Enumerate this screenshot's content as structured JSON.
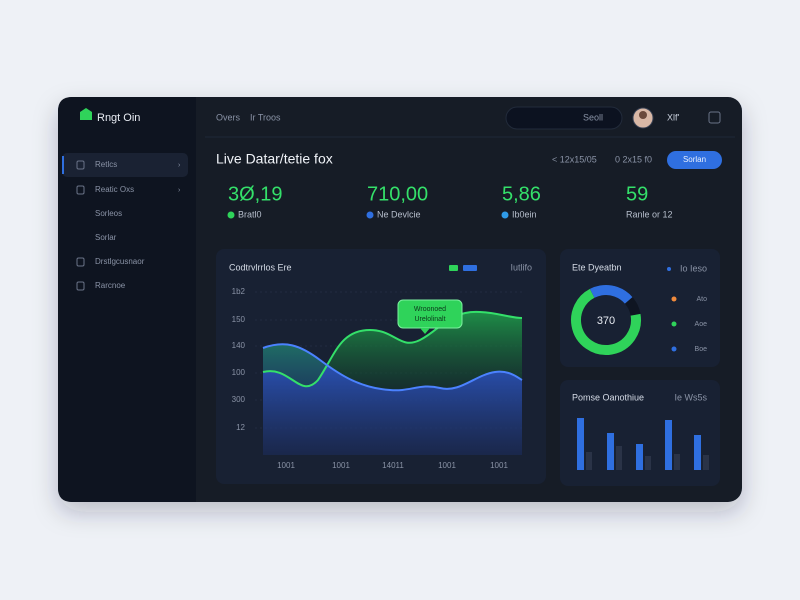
{
  "sidebar": {
    "brand": "Rngt Oin",
    "items": [
      "Retlcs",
      "Reatic Oxs",
      "Sorleos",
      "Sorlar",
      "Drstlgcusnaor",
      "Rarcnoe"
    ]
  },
  "topbar": {
    "breadcrumb": [
      "Overs",
      "Ir Troos"
    ],
    "search": "Seoll",
    "user": "Xlf'"
  },
  "header": {
    "title": "Live Datar/tetie fox",
    "filters": [
      "< 12x15/05",
      "0 2x15 f0"
    ],
    "button": "Sorlan"
  },
  "kpis": [
    {
      "value": "3Ø,19",
      "label": "Bratl0"
    },
    {
      "value": "710,00",
      "label": "Ne Devlcie"
    },
    {
      "value": "5,86",
      "label": "Ib0ein"
    },
    {
      "value": "59",
      "label": "Ranle or 12"
    }
  ],
  "area_panel": {
    "title": "Codtrvlrrlos Ere",
    "legend": "Iutlifo",
    "y_labels": [
      "1b2",
      "150",
      "140",
      "100",
      "300",
      "12"
    ],
    "x_labels": [
      "1001",
      "1001",
      "14011",
      "1001",
      "1001"
    ],
    "tooltip": [
      "Wroonoed",
      "Urelolinalt"
    ]
  },
  "donut_panel": {
    "title": "Ete Dyeatbn",
    "legend_title": "Io Ieso",
    "center": "370",
    "legend": [
      "Ato",
      "Aoe",
      "Boe"
    ]
  },
  "bar_panel": {
    "title": "Pomse Oanothiue",
    "legend": "Ie Ws5s"
  }
}
